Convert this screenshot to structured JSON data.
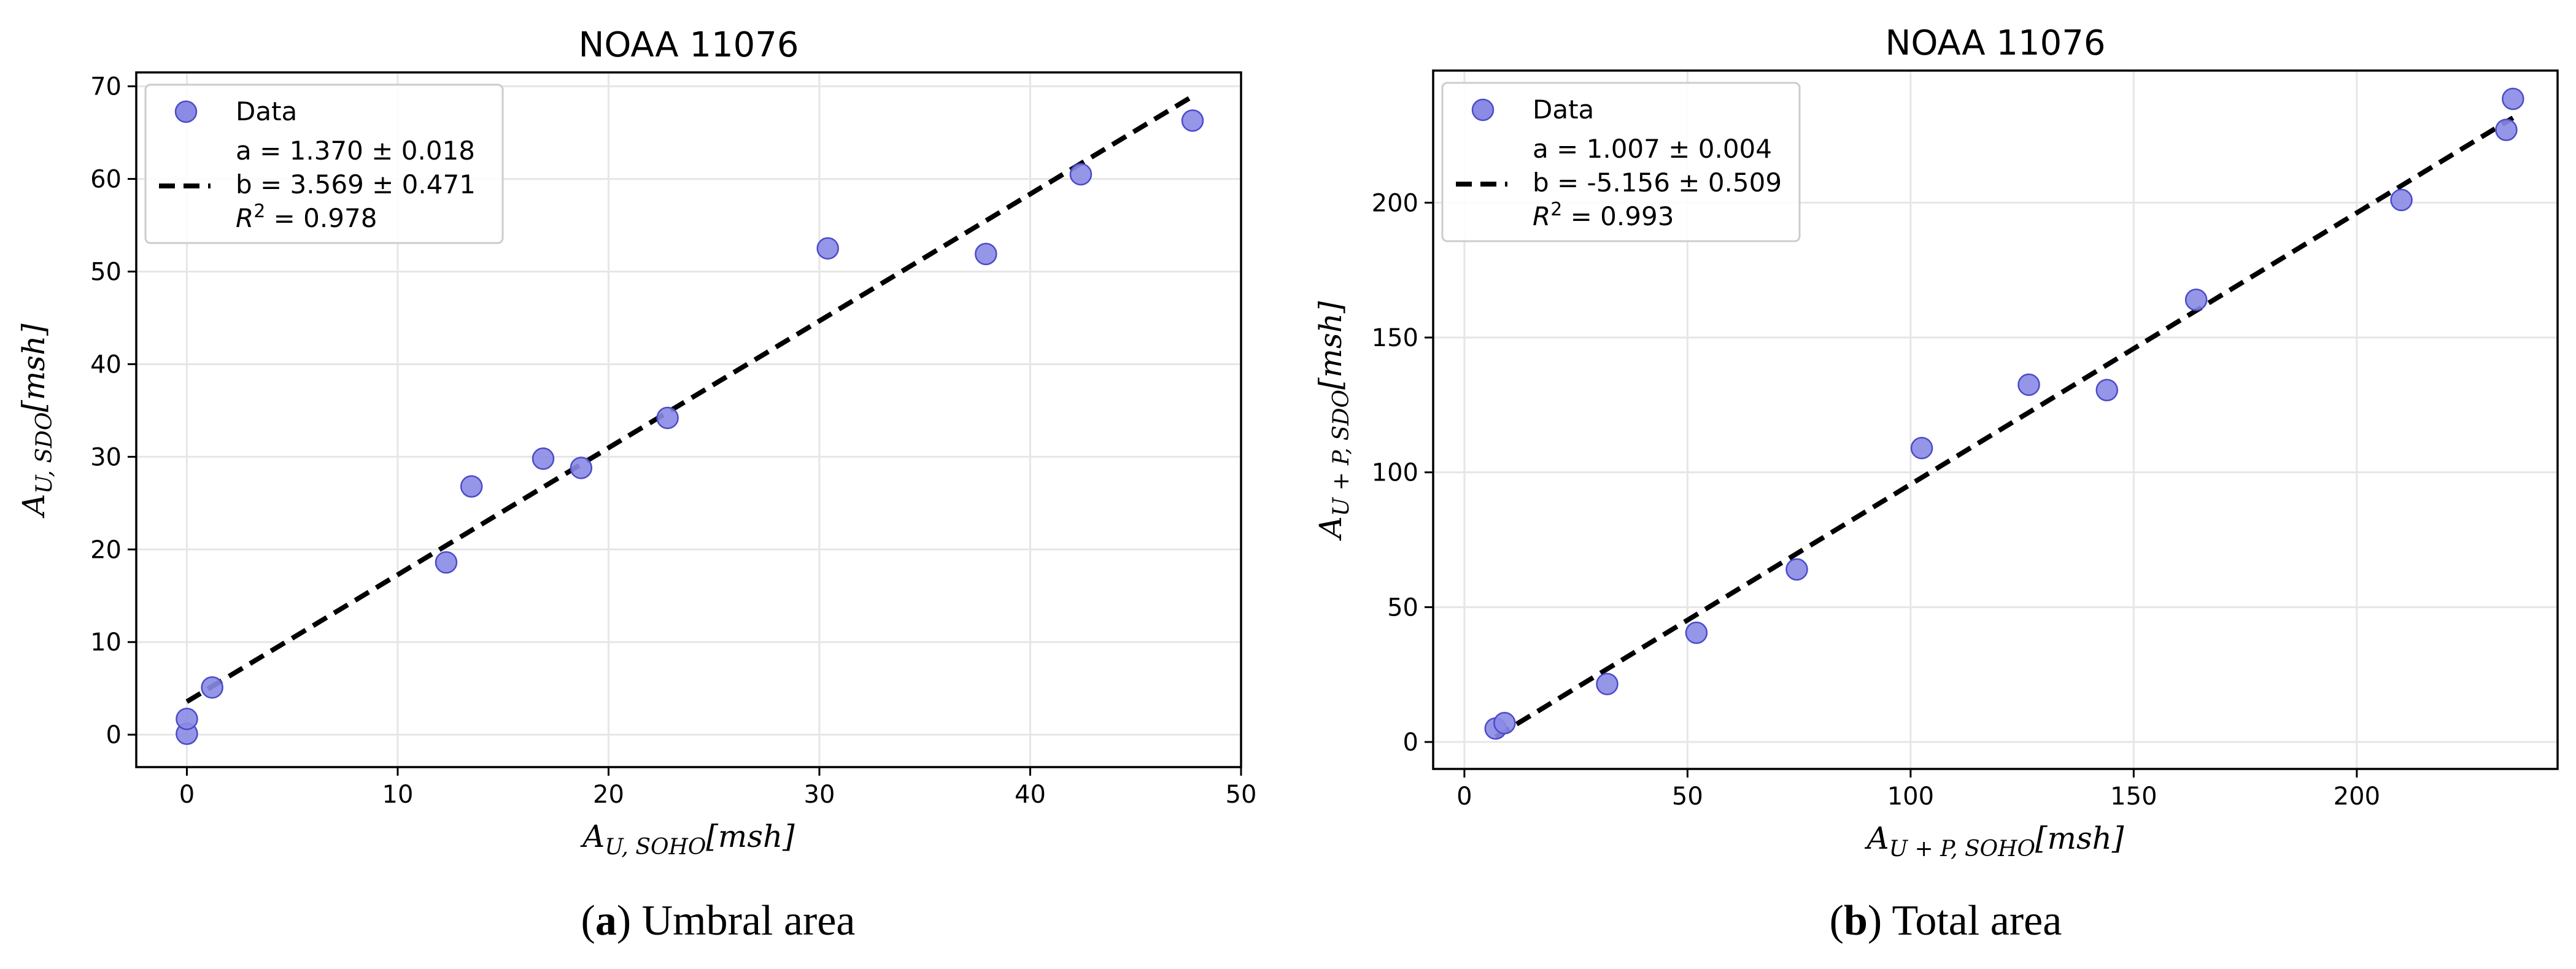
{
  "colors": {
    "marker_fill": "#8b8be6",
    "marker_edge": "#4b4bc8",
    "fit_line": "#000000",
    "grid": "#e6e6e6"
  },
  "chart_data": [
    {
      "type": "scatter",
      "title": "NOAA 11076",
      "xlabel": {
        "base": "A",
        "sub": "U, SOHO",
        "unit": "[msh]"
      },
      "ylabel": {
        "base": "A",
        "sub": "U, SDO",
        "unit": "[msh]"
      },
      "xlim": [
        -2.4,
        50.0
      ],
      "ylim": [
        -3.5,
        71.5
      ],
      "xticks": [
        0,
        10,
        20,
        30,
        40,
        50
      ],
      "yticks": [
        0,
        10,
        20,
        30,
        40,
        50,
        60,
        70
      ],
      "grid": true,
      "legend_position": "upper-left",
      "series": [
        {
          "name": "Data",
          "x": [
            0.0,
            0.0,
            1.2,
            12.3,
            13.5,
            16.9,
            18.7,
            22.8,
            30.4,
            37.9,
            42.4,
            47.7
          ],
          "y": [
            0.1,
            1.7,
            5.1,
            18.6,
            26.8,
            29.8,
            28.8,
            34.2,
            52.5,
            51.9,
            60.5,
            66.3
          ]
        }
      ],
      "fit": {
        "slope": 1.37,
        "intercept": 3.569,
        "x_range": [
          0.0,
          47.7
        ],
        "style": "dashed"
      },
      "legend": {
        "marker_label": "Data",
        "fit_lines": [
          "a = 1.370 ± 0.018",
          "b = 3.569 ± 0.471"
        ],
        "r2": {
          "prefix": "R",
          "sup": "2",
          "text": "=  0.978"
        }
      },
      "caption": {
        "label": "a",
        "text": " Umbral area"
      }
    },
    {
      "type": "scatter",
      "title": "NOAA 11076",
      "xlabel": {
        "base": "A",
        "sub": "U + P, SOHO",
        "unit": "[msh]"
      },
      "ylabel": {
        "base": "A",
        "sub": "U + P, SDO",
        "unit": "[msh]"
      },
      "xlim": [
        -7.0,
        245.0
      ],
      "ylim": [
        -10.0,
        249.0
      ],
      "xticks": [
        0,
        50,
        100,
        150,
        200
      ],
      "yticks": [
        0,
        50,
        100,
        150,
        200
      ],
      "grid": true,
      "legend_position": "upper-left",
      "series": [
        {
          "name": "Data",
          "x": [
            7.0,
            9.0,
            32.0,
            52.0,
            74.5,
            102.5,
            126.5,
            144.0,
            164.0,
            210.0,
            233.5,
            235.0
          ],
          "y": [
            5.0,
            7.0,
            21.5,
            40.5,
            64.0,
            109.0,
            132.5,
            130.5,
            164.0,
            201.0,
            227.0,
            238.5
          ]
        }
      ],
      "fit": {
        "slope": 1.007,
        "intercept": -5.156,
        "x_range": [
          7.0,
          235.0
        ],
        "style": "dashed"
      },
      "legend": {
        "marker_label": "Data",
        "fit_lines": [
          "a = 1.007 ± 0.004",
          "b = -5.156 ± 0.509"
        ],
        "r2": {
          "prefix": "R",
          "sup": "2",
          "text": "=  0.993"
        }
      },
      "caption": {
        "label": "b",
        "text": " Total area"
      }
    }
  ]
}
